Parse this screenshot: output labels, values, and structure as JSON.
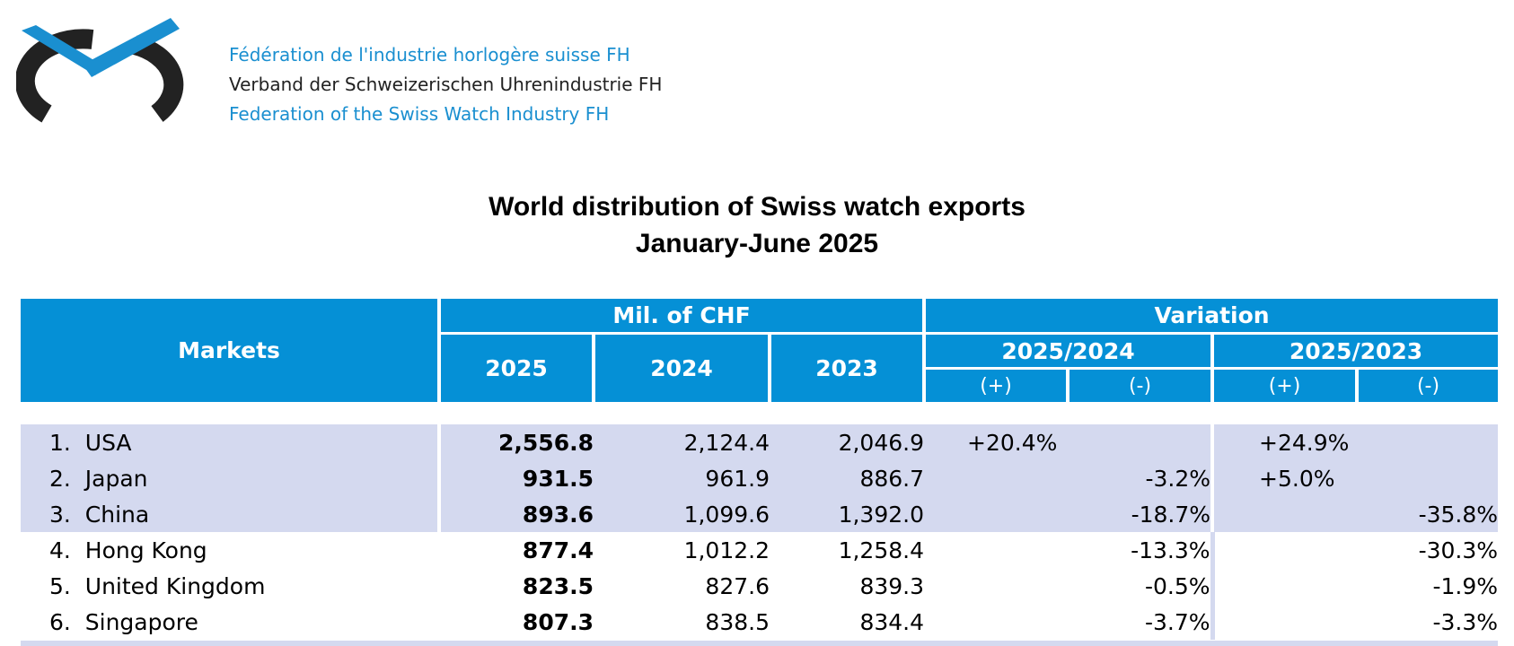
{
  "organization": {
    "lines": [
      "Fédération de l'industrie horlogère suisse FH",
      "Verband der Schweizerischen Uhrenindustrie FH",
      "Federation of the Swiss Watch Industry FH"
    ],
    "line_colors": [
      "#1a8fd0",
      "#222222",
      "#1a8fd0"
    ],
    "logo_icon": "fh-watch-logo-icon"
  },
  "title": {
    "line1": "World distribution of Swiss watch exports",
    "line2": "January-June 2025"
  },
  "table": {
    "markets_header": "Markets",
    "value_group_header": "Mil. of CHF",
    "variation_header": "Variation",
    "year_headers": [
      "2025",
      "2024",
      "2023"
    ],
    "variation_subheaders": [
      "2025/2024",
      "2025/2023"
    ],
    "sign_headers": [
      "(+)",
      "(-)",
      "(+)",
      "(-)"
    ],
    "rows": [
      {
        "rank": "1.",
        "market": "USA",
        "v2025": "2,556.8",
        "v2024": "2,124.4",
        "v2023": "2,046.9",
        "var24_pos": "+20.4%",
        "var24_neg": "",
        "var23_pos": "+24.9%",
        "var23_neg": ""
      },
      {
        "rank": "2.",
        "market": "Japan",
        "v2025": "931.5",
        "v2024": "961.9",
        "v2023": "886.7",
        "var24_pos": "",
        "var24_neg": "-3.2%",
        "var23_pos": "+5.0%",
        "var23_neg": ""
      },
      {
        "rank": "3.",
        "market": "China",
        "v2025": "893.6",
        "v2024": "1,099.6",
        "v2023": "1,392.0",
        "var24_pos": "",
        "var24_neg": "-18.7%",
        "var23_pos": "",
        "var23_neg": "-35.8%"
      },
      {
        "rank": "4.",
        "market": "Hong Kong",
        "v2025": "877.4",
        "v2024": "1,012.2",
        "v2023": "1,258.4",
        "var24_pos": "",
        "var24_neg": "-13.3%",
        "var23_pos": "",
        "var23_neg": "-30.3%"
      },
      {
        "rank": "5.",
        "market": "United Kingdom",
        "v2025": "823.5",
        "v2024": "827.6",
        "v2023": "839.3",
        "var24_pos": "",
        "var24_neg": "-0.5%",
        "var23_pos": "",
        "var23_neg": "-1.9%"
      },
      {
        "rank": "6.",
        "market": "Singapore",
        "v2025": "807.3",
        "v2024": "838.5",
        "v2023": "834.4",
        "var24_pos": "",
        "var24_neg": "-3.7%",
        "var23_pos": "",
        "var23_neg": "-3.3%"
      }
    ],
    "colors": {
      "header_bg": "#0590d6",
      "row_shade": "#d4d9ef"
    }
  }
}
